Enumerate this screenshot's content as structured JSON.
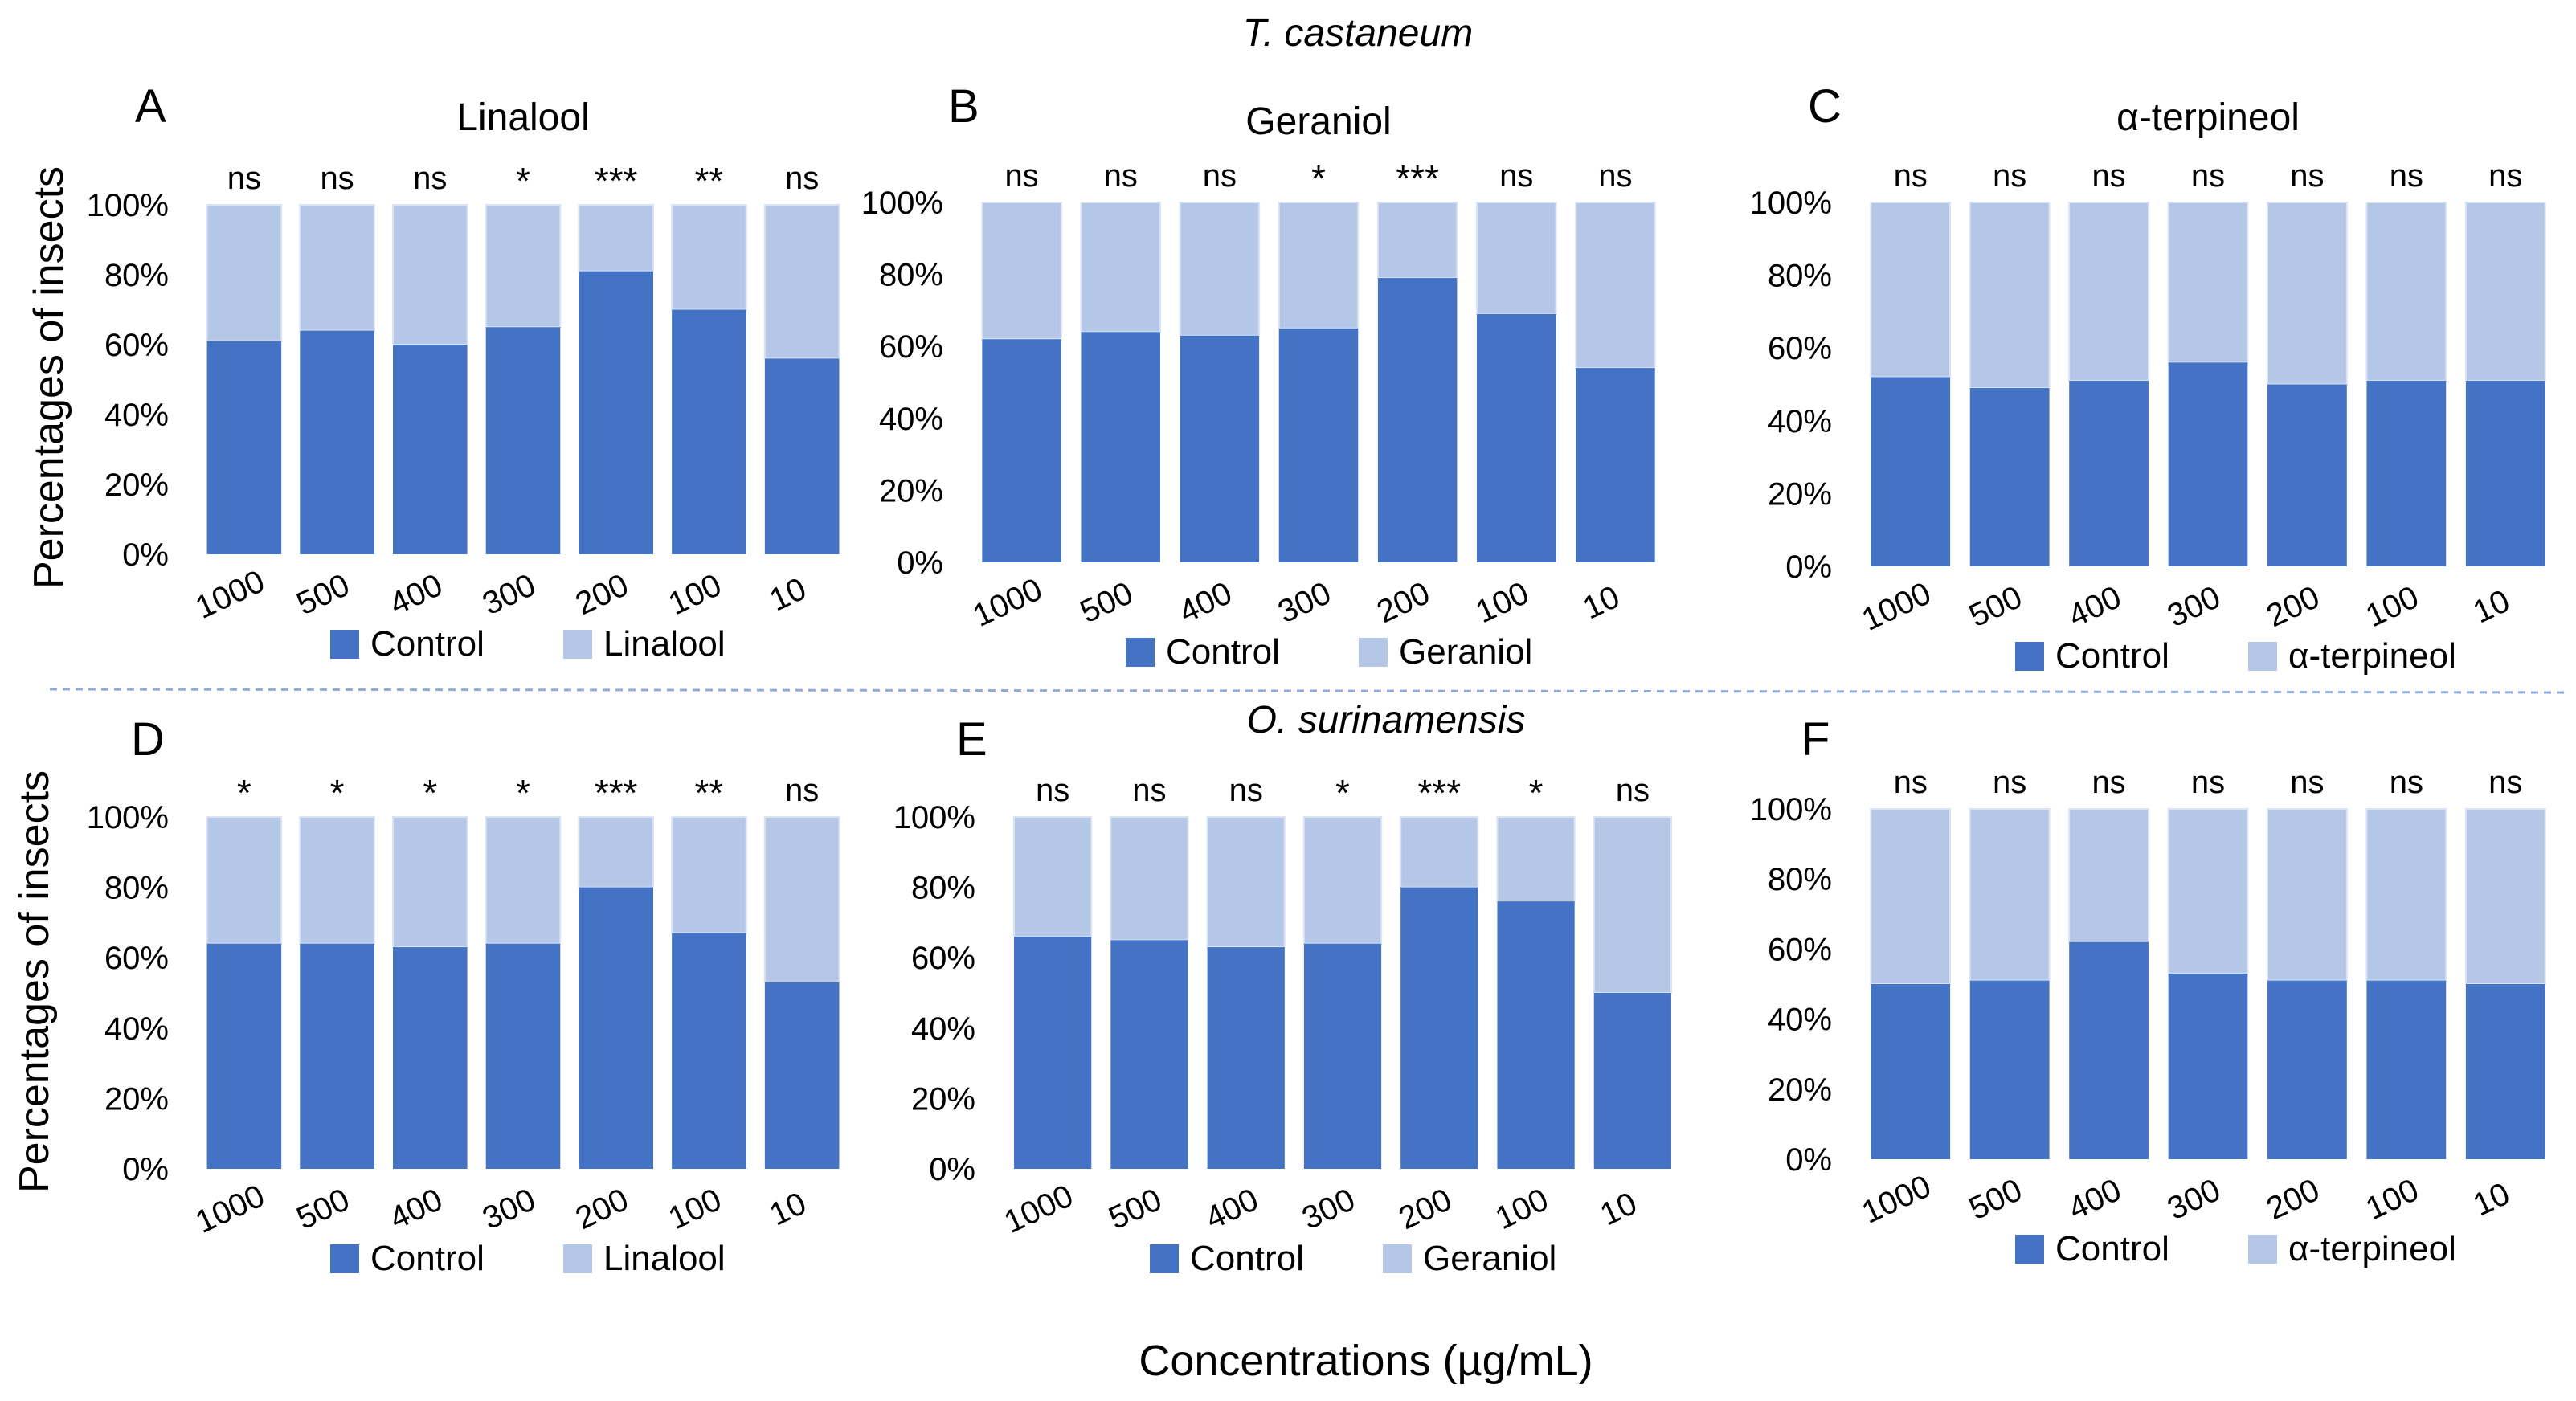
{
  "figure": {
    "top_title": "T. castaneum",
    "row2_title": "O. surinamensis",
    "xlabel": "Concentrations  (µg/mL)",
    "ylabel": "Percentages of insects"
  },
  "colors": {
    "control": "#4472C4",
    "treatment": "#B4C7E7",
    "separator": "#8FAADC"
  },
  "chart_data": [
    {
      "panel": "A",
      "type": "bar",
      "stacked": true,
      "title": "Linalool",
      "ylabel": "Percentages of insects",
      "categories": [
        "1000",
        "500",
        "400",
        "300",
        "200",
        "100",
        "10"
      ],
      "y_ticks": [
        "0%",
        "20%",
        "40%",
        "60%",
        "80%",
        "100%"
      ],
      "ylim": [
        0,
        100
      ],
      "significance": [
        "ns",
        "ns",
        "ns",
        "*",
        "***",
        "**",
        "ns"
      ],
      "series": [
        {
          "name": "Control",
          "values": [
            61,
            64,
            60,
            65,
            81,
            70,
            56
          ]
        },
        {
          "name": "Linalool",
          "values": [
            39,
            36,
            40,
            35,
            19,
            30,
            44
          ]
        }
      ],
      "legend": [
        "Control",
        "Linalool"
      ]
    },
    {
      "panel": "B",
      "type": "bar",
      "stacked": true,
      "title": "Geraniol",
      "categories": [
        "1000",
        "500",
        "400",
        "300",
        "200",
        "100",
        "10"
      ],
      "y_ticks": [
        "0%",
        "20%",
        "40%",
        "60%",
        "80%",
        "100%"
      ],
      "ylim": [
        0,
        100
      ],
      "significance": [
        "ns",
        "ns",
        "ns",
        "*",
        "***",
        "ns",
        "ns"
      ],
      "series": [
        {
          "name": "Control",
          "values": [
            62,
            64,
            63,
            65,
            79,
            69,
            54
          ]
        },
        {
          "name": "Geraniol",
          "values": [
            38,
            36,
            37,
            35,
            21,
            31,
            46
          ]
        }
      ],
      "legend": [
        "Control",
        "Geraniol"
      ]
    },
    {
      "panel": "C",
      "type": "bar",
      "stacked": true,
      "title": "α-terpineol",
      "categories": [
        "1000",
        "500",
        "400",
        "300",
        "200",
        "100",
        "10"
      ],
      "y_ticks": [
        "0%",
        "20%",
        "40%",
        "60%",
        "80%",
        "100%"
      ],
      "ylim": [
        0,
        100
      ],
      "significance": [
        "ns",
        "ns",
        "ns",
        "ns",
        "ns",
        "ns",
        "ns"
      ],
      "series": [
        {
          "name": "Control",
          "values": [
            52,
            49,
            51,
            56,
            50,
            51,
            51
          ]
        },
        {
          "name": "α-terpineol",
          "values": [
            48,
            51,
            49,
            44,
            50,
            49,
            49
          ]
        }
      ],
      "legend": [
        "Control",
        "α-terpineol"
      ]
    },
    {
      "panel": "D",
      "type": "bar",
      "stacked": true,
      "title": "",
      "ylabel": "Percentages of insects",
      "categories": [
        "1000",
        "500",
        "400",
        "300",
        "200",
        "100",
        "10"
      ],
      "y_ticks": [
        "0%",
        "20%",
        "40%",
        "60%",
        "80%",
        "100%"
      ],
      "ylim": [
        0,
        100
      ],
      "significance": [
        "*",
        "*",
        "*",
        "*",
        "***",
        "**",
        "ns"
      ],
      "series": [
        {
          "name": "Control",
          "values": [
            64,
            64,
            63,
            64,
            80,
            67,
            53
          ]
        },
        {
          "name": "Linalool",
          "values": [
            36,
            36,
            37,
            36,
            20,
            33,
            47
          ]
        }
      ],
      "legend": [
        "Control",
        "Linalool"
      ]
    },
    {
      "panel": "E",
      "type": "bar",
      "stacked": true,
      "title": "",
      "categories": [
        "1000",
        "500",
        "400",
        "300",
        "200",
        "100",
        "10"
      ],
      "y_ticks": [
        "0%",
        "20%",
        "40%",
        "60%",
        "80%",
        "100%"
      ],
      "ylim": [
        0,
        100
      ],
      "significance": [
        "ns",
        "ns",
        "ns",
        "*",
        "***",
        "*",
        "ns"
      ],
      "series": [
        {
          "name": "Control",
          "values": [
            66,
            65,
            63,
            64,
            80,
            76,
            50
          ]
        },
        {
          "name": "Geraniol",
          "values": [
            34,
            35,
            37,
            36,
            20,
            24,
            50
          ]
        }
      ],
      "legend": [
        "Control",
        "Geraniol"
      ]
    },
    {
      "panel": "F",
      "type": "bar",
      "stacked": true,
      "title": "",
      "categories": [
        "1000",
        "500",
        "400",
        "300",
        "200",
        "100",
        "10"
      ],
      "y_ticks": [
        "0%",
        "20%",
        "40%",
        "60%",
        "80%",
        "100%"
      ],
      "ylim": [
        0,
        100
      ],
      "significance": [
        "ns",
        "ns",
        "ns",
        "ns",
        "ns",
        "ns",
        "ns"
      ],
      "series": [
        {
          "name": "Control",
          "values": [
            50,
            51,
            62,
            53,
            51,
            51,
            50
          ]
        },
        {
          "name": "α-terpineol",
          "values": [
            50,
            49,
            38,
            47,
            49,
            49,
            50
          ]
        }
      ],
      "legend": [
        "Control",
        "α-terpineol"
      ]
    }
  ]
}
